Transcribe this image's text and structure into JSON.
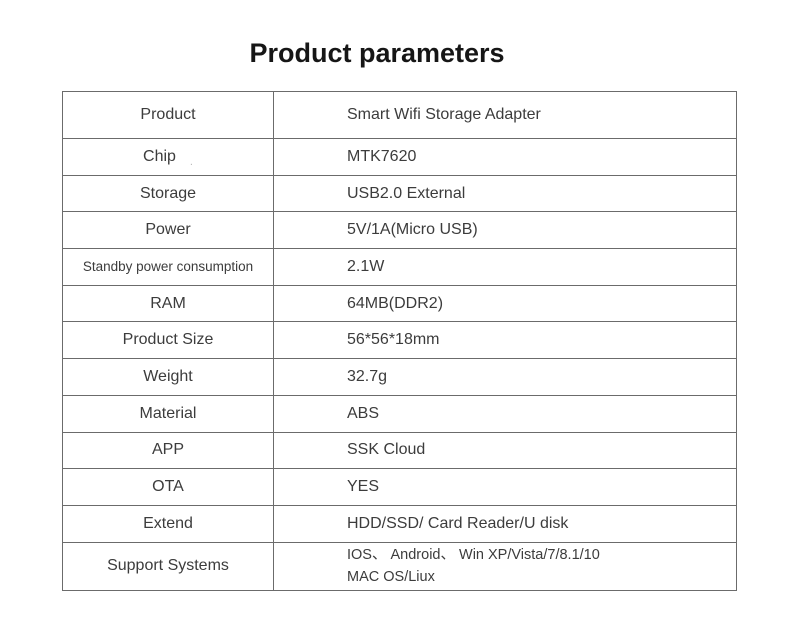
{
  "page": {
    "title": "Product parameters"
  },
  "colors": {
    "background": "#ffffff",
    "border": "#6b6b6b",
    "text": "#3c3c3c",
    "title": "#161616"
  },
  "table": {
    "rows": [
      {
        "label": "Product",
        "value": "Smart Wifi Storage Adapter"
      },
      {
        "label": "Chip",
        "value": "MTK7620"
      },
      {
        "label": "Storage",
        "value": "USB2.0 External"
      },
      {
        "label": "Power",
        "value": "5V/1A(Micro USB)"
      },
      {
        "label": "Standby power consumption",
        "value": "2.1W"
      },
      {
        "label": "RAM",
        "value": "64MB(DDR2)"
      },
      {
        "label": "Product Size",
        "value": "56*56*18mm"
      },
      {
        "label": "Weight",
        "value": "32.7g"
      },
      {
        "label": "Material",
        "value": "ABS"
      },
      {
        "label": "APP",
        "value": "SSK Cloud"
      },
      {
        "label": "OTA",
        "value": "YES"
      },
      {
        "label": "Extend",
        "value": "HDD/SSD/ Card Reader/U disk"
      },
      {
        "label": "Support Systems",
        "value_lines": [
          "IOS、 Android、 Win XP/Vista/7/8.1/10",
          "MAC OS/Liux"
        ]
      }
    ]
  }
}
